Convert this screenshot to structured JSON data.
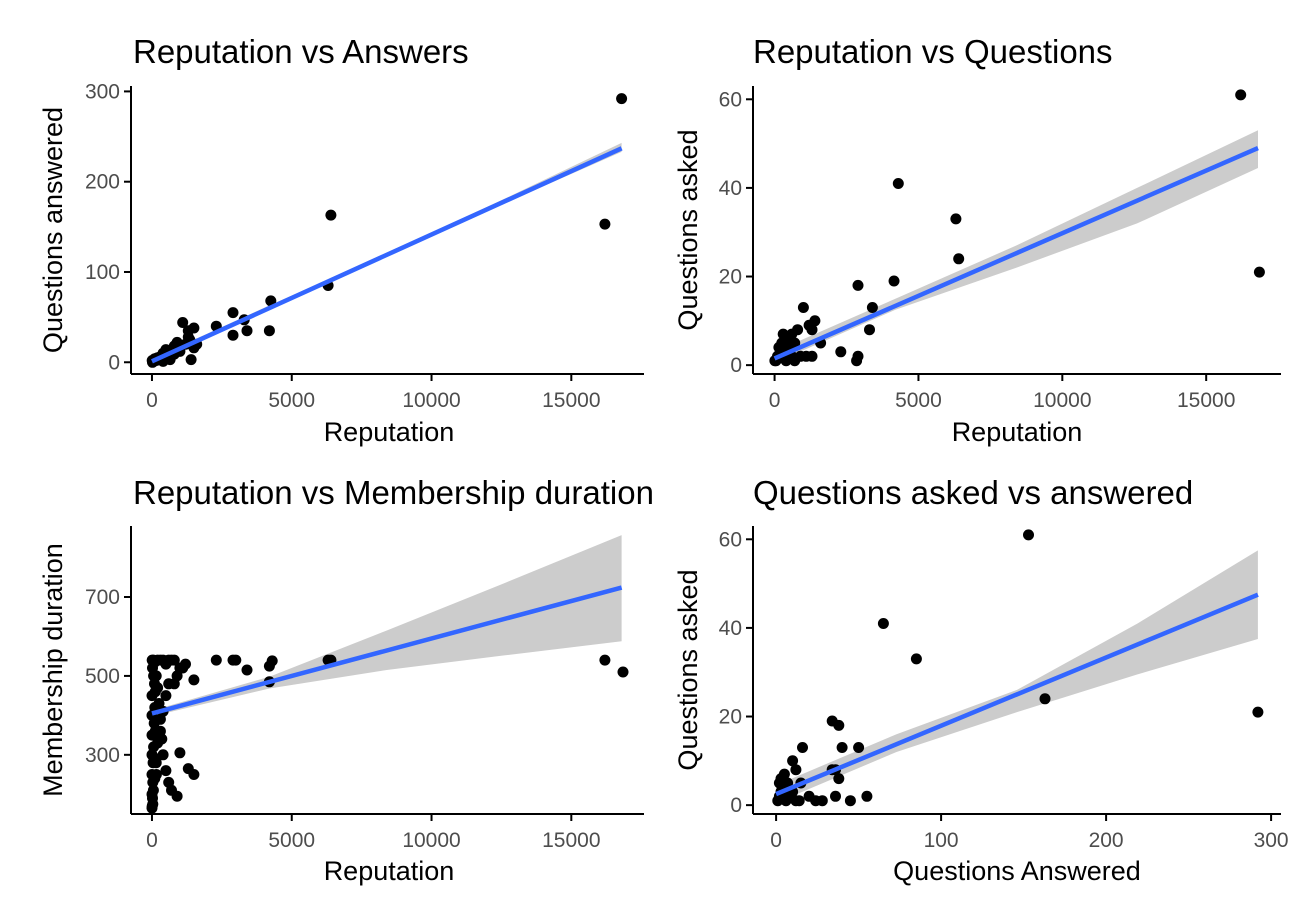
{
  "style": {
    "point_color": "#000000",
    "fit_color": "#3366ff",
    "ribbon_color": "#cccccc",
    "axis_color": "#000000",
    "tick_text_color": "#4d4d4d"
  },
  "chart_data": [
    {
      "type": "scatter",
      "title": "Reputation vs Answers",
      "xlabel": "Reputation",
      "ylabel": "Questions answered",
      "xlim": [
        -750,
        17600
      ],
      "ylim": [
        -13,
        306
      ],
      "xticks": [
        0,
        5000,
        10000,
        15000
      ],
      "yticks": [
        0,
        100,
        200,
        300
      ],
      "grid": false,
      "legend": "none",
      "points": [
        [
          16800,
          292
        ],
        [
          16200,
          153
        ],
        [
          6400,
          163
        ],
        [
          6300,
          85
        ],
        [
          4250,
          68
        ],
        [
          4200,
          35
        ],
        [
          3400,
          35
        ],
        [
          3300,
          47
        ],
        [
          2900,
          30
        ],
        [
          2900,
          55
        ],
        [
          2300,
          40
        ],
        [
          1500,
          38
        ],
        [
          1500,
          16
        ],
        [
          1400,
          3
        ],
        [
          1300,
          35
        ],
        [
          1300,
          28
        ],
        [
          1100,
          44
        ],
        [
          900,
          22
        ],
        [
          800,
          18
        ],
        [
          700,
          12
        ],
        [
          600,
          8
        ],
        [
          500,
          14
        ],
        [
          400,
          10
        ],
        [
          300,
          6
        ],
        [
          250,
          3
        ],
        [
          200,
          5
        ],
        [
          150,
          2
        ],
        [
          100,
          4
        ],
        [
          60,
          1
        ],
        [
          20,
          0
        ],
        [
          10,
          2
        ],
        [
          400,
          1
        ],
        [
          650,
          3
        ],
        [
          1000,
          12
        ],
        [
          1200,
          20
        ],
        [
          1350,
          25
        ],
        [
          1600,
          20
        ],
        [
          800,
          9
        ],
        [
          550,
          5
        ]
      ],
      "fit": {
        "x": [
          0,
          16800
        ],
        "y": [
          1,
          237
        ]
      },
      "ribbon": {
        "x": [
          0,
          4200,
          8400,
          12600,
          16800
        ],
        "lower": [
          -2,
          59,
          118,
          176,
          233
        ],
        "upper": [
          4,
          63,
          120,
          181,
          243
        ]
      }
    },
    {
      "type": "scatter",
      "title": "Reputation vs Questions",
      "xlabel": "Reputation",
      "ylabel": "Questions asked",
      "xlim": [
        -750,
        17600
      ],
      "ylim": [
        -2,
        63
      ],
      "xticks": [
        0,
        5000,
        10000,
        15000
      ],
      "yticks": [
        0,
        20,
        40,
        60
      ],
      "grid": false,
      "legend": "none",
      "points": [
        [
          16200,
          61
        ],
        [
          16850,
          21
        ],
        [
          4300,
          41
        ],
        [
          6300,
          33
        ],
        [
          6400,
          24
        ],
        [
          4150,
          19
        ],
        [
          2900,
          18
        ],
        [
          3400,
          13
        ],
        [
          3300,
          8
        ],
        [
          2900,
          2
        ],
        [
          2850,
          1
        ],
        [
          2300,
          3
        ],
        [
          1600,
          5
        ],
        [
          1400,
          10
        ],
        [
          1300,
          8
        ],
        [
          1300,
          2
        ],
        [
          1200,
          9
        ],
        [
          1000,
          13
        ],
        [
          1100,
          2
        ],
        [
          900,
          2
        ],
        [
          800,
          8
        ],
        [
          700,
          5
        ],
        [
          600,
          7
        ],
        [
          500,
          4
        ],
        [
          400,
          6
        ],
        [
          300,
          7
        ],
        [
          250,
          5
        ],
        [
          200,
          3
        ],
        [
          150,
          4
        ],
        [
          100,
          2
        ],
        [
          50,
          1
        ],
        [
          10,
          1
        ],
        [
          400,
          1
        ],
        [
          600,
          2
        ],
        [
          700,
          1
        ]
      ],
      "fit": {
        "x": [
          0,
          16800
        ],
        "y": [
          1.5,
          49
        ]
      },
      "ribbon": {
        "x": [
          0,
          4200,
          8400,
          12600,
          16800
        ],
        "lower": [
          0.5,
          12.5,
          22,
          32,
          44.5
        ],
        "upper": [
          3,
          15,
          27,
          40,
          53
        ]
      }
    },
    {
      "type": "scatter",
      "title": "Reputation vs Membership duration",
      "xlabel": "Reputation",
      "ylabel": "Membership duration",
      "xlim": [
        -750,
        17600
      ],
      "ylim": [
        150,
        880
      ],
      "xticks": [
        0,
        5000,
        10000,
        15000
      ],
      "yticks": [
        300,
        500,
        700
      ],
      "grid": false,
      "legend": "none",
      "points": [
        [
          16200,
          540
        ],
        [
          16850,
          510
        ],
        [
          6400,
          540
        ],
        [
          6300,
          540
        ],
        [
          4300,
          538
        ],
        [
          4200,
          525
        ],
        [
          4200,
          485
        ],
        [
          3400,
          515
        ],
        [
          3000,
          540
        ],
        [
          2900,
          540
        ],
        [
          2300,
          540
        ],
        [
          1500,
          490
        ],
        [
          1500,
          250
        ],
        [
          1300,
          265
        ],
        [
          1000,
          305
        ],
        [
          900,
          195
        ],
        [
          800,
          540
        ],
        [
          700,
          540
        ],
        [
          600,
          540
        ],
        [
          500,
          530
        ],
        [
          400,
          540
        ],
        [
          300,
          540
        ],
        [
          200,
          540
        ],
        [
          100,
          535
        ],
        [
          50,
          540
        ],
        [
          10,
          540
        ],
        [
          0,
          300
        ],
        [
          0,
          250
        ],
        [
          0,
          200
        ],
        [
          0,
          165
        ],
        [
          0,
          450
        ],
        [
          0,
          400
        ],
        [
          0,
          350
        ],
        [
          20,
          190
        ],
        [
          30,
          230
        ],
        [
          40,
          280
        ],
        [
          60,
          320
        ],
        [
          80,
          380
        ],
        [
          100,
          420
        ],
        [
          120,
          460
        ],
        [
          150,
          500
        ],
        [
          200,
          470
        ],
        [
          250,
          430
        ],
        [
          300,
          390
        ],
        [
          350,
          340
        ],
        [
          400,
          300
        ],
        [
          500,
          260
        ],
        [
          600,
          230
        ],
        [
          700,
          210
        ],
        [
          800,
          480
        ],
        [
          900,
          500
        ],
        [
          1000,
          520
        ],
        [
          1200,
          530
        ],
        [
          1100,
          520
        ],
        [
          600,
          480
        ],
        [
          500,
          450
        ],
        [
          400,
          410
        ],
        [
          300,
          360
        ],
        [
          200,
          330
        ],
        [
          150,
          280
        ],
        [
          100,
          240
        ],
        [
          50,
          210
        ],
        [
          30,
          175
        ],
        [
          10,
          170
        ],
        [
          20,
          520
        ],
        [
          60,
          500
        ],
        [
          90,
          480
        ],
        [
          120,
          360
        ],
        [
          140,
          290
        ],
        [
          160,
          250
        ]
      ],
      "fit": {
        "x": [
          0,
          16800
        ],
        "y": [
          405,
          724
        ]
      },
      "ribbon": {
        "x": [
          0,
          4200,
          8400,
          12600,
          16800
        ],
        "lower": [
          398,
          468,
          515,
          552,
          588
        ],
        "upper": [
          412,
          498,
          615,
          735,
          857
        ]
      }
    },
    {
      "type": "scatter",
      "title": "Questions asked vs answered",
      "xlabel": "Questions Answered",
      "ylabel": "Questions asked",
      "xlim": [
        -14,
        306
      ],
      "ylim": [
        -2,
        63
      ],
      "xticks": [
        0,
        100,
        200,
        300
      ],
      "yticks": [
        0,
        20,
        40,
        60
      ],
      "grid": false,
      "legend": "none",
      "points": [
        [
          153,
          61
        ],
        [
          292,
          21
        ],
        [
          65,
          41
        ],
        [
          85,
          33
        ],
        [
          163,
          24
        ],
        [
          34,
          19
        ],
        [
          38,
          18
        ],
        [
          50,
          13
        ],
        [
          40,
          13
        ],
        [
          16,
          13
        ],
        [
          36,
          8
        ],
        [
          34,
          8
        ],
        [
          38,
          6
        ],
        [
          10,
          10
        ],
        [
          12,
          8
        ],
        [
          15,
          5
        ],
        [
          20,
          2
        ],
        [
          55,
          2
        ],
        [
          45,
          1
        ],
        [
          28,
          1
        ],
        [
          24,
          1
        ],
        [
          36,
          2
        ],
        [
          5,
          7
        ],
        [
          3,
          6
        ],
        [
          2,
          5
        ],
        [
          4,
          4
        ],
        [
          5,
          3
        ],
        [
          2,
          2
        ],
        [
          1,
          1
        ],
        [
          8,
          2
        ],
        [
          10,
          3
        ],
        [
          6,
          1
        ],
        [
          12,
          1
        ],
        [
          14,
          1
        ],
        [
          3,
          3
        ],
        [
          7,
          5
        ]
      ],
      "fit": {
        "x": [
          0,
          292
        ],
        "y": [
          2.5,
          47.5
        ]
      },
      "ribbon": {
        "x": [
          0,
          73,
          146,
          219,
          292
        ],
        "lower": [
          0.5,
          12,
          21,
          29.5,
          37.5
        ],
        "upper": [
          4.5,
          16,
          26,
          41,
          57.5
        ]
      }
    }
  ]
}
